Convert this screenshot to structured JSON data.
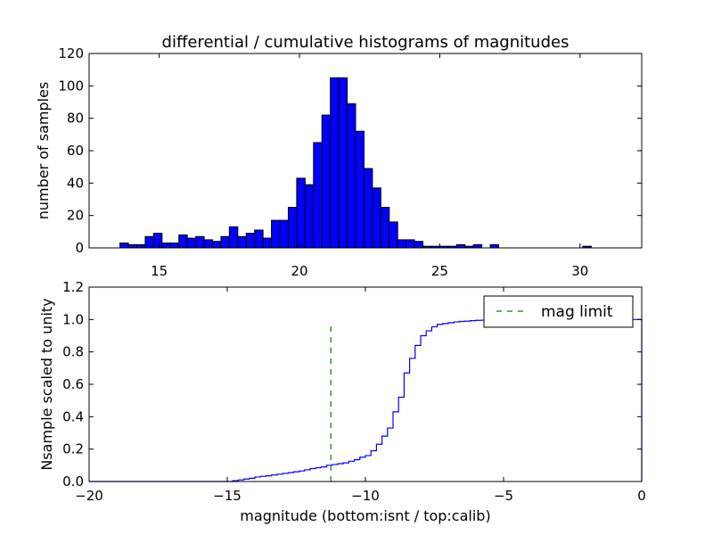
{
  "figure_title": "differential / cumulative histograms of magnitudes",
  "colors": {
    "hist_fill": "#0000ff",
    "hist_edge": "#000000",
    "cum_line": "#0000ff",
    "limit_line": "#008000"
  },
  "chart_data": [
    {
      "type": "bar",
      "title": "differential / cumulative histograms of magnitudes",
      "xlabel": "",
      "ylabel": "number of samples",
      "xlim": [
        12.5,
        32.2
      ],
      "ylim": [
        0,
        120
      ],
      "xticks": [
        15,
        20,
        25,
        30
      ],
      "yticks": [
        0,
        20,
        40,
        60,
        80,
        100,
        120
      ],
      "bin_width": 0.3,
      "bin_starts": [
        13.6,
        13.9,
        14.2,
        14.5,
        14.8,
        15.1,
        15.4,
        15.7,
        16.0,
        16.3,
        16.6,
        16.9,
        17.2,
        17.5,
        17.8,
        18.1,
        18.4,
        18.7,
        19.0,
        19.3,
        19.6,
        19.9,
        20.2,
        20.5,
        20.8,
        21.1,
        21.4,
        21.7,
        22.0,
        22.3,
        22.6,
        22.9,
        23.2,
        23.5,
        23.8,
        24.1,
        24.4,
        24.7,
        25.0,
        25.3,
        25.6,
        25.9,
        26.2,
        26.5,
        26.8,
        27.1,
        27.4,
        27.7,
        28.0,
        28.3,
        28.6,
        28.9,
        29.2,
        29.5,
        29.8,
        30.1,
        30.4,
        30.7,
        31.0
      ],
      "values": [
        3,
        2,
        2,
        7,
        9,
        3,
        3,
        8,
        6,
        7,
        5,
        4,
        7,
        13,
        7,
        9,
        11,
        6,
        17,
        17,
        25,
        43,
        39,
        65,
        82,
        105,
        105,
        89,
        72,
        49,
        37,
        25,
        16,
        5,
        5,
        4,
        1,
        1,
        1,
        1,
        2,
        1,
        2,
        0,
        2,
        0,
        0,
        0,
        0,
        0,
        0,
        0,
        0,
        0,
        0,
        1,
        0,
        0,
        0
      ],
      "grid": false
    },
    {
      "type": "line",
      "title": "",
      "xlabel": "magnitude (bottom:isnt / top:calib)",
      "ylabel": "Nsample scaled to unity",
      "xlim": [
        -20,
        0
      ],
      "ylim": [
        0,
        1.2
      ],
      "xticks": [
        -20,
        -15,
        -10,
        -5,
        0
      ],
      "yticks": [
        0.0,
        0.2,
        0.4,
        0.6,
        0.8,
        1.0,
        1.2
      ],
      "xtick_labels": [
        "−20",
        "−15",
        "−10",
        "−5",
        "0"
      ],
      "ytick_labels": [
        "0.0",
        "0.2",
        "0.4",
        "0.6",
        "0.8",
        "1.0",
        "1.2"
      ],
      "grid": false,
      "legend_position": "top-right",
      "series": [
        {
          "style": "step",
          "x": [
            -15.0,
            -14.8,
            -14.6,
            -14.4,
            -14.2,
            -14.0,
            -13.8,
            -13.6,
            -13.4,
            -13.2,
            -13.0,
            -12.8,
            -12.6,
            -12.4,
            -12.2,
            -12.0,
            -11.8,
            -11.6,
            -11.4,
            -11.2,
            -11.0,
            -10.8,
            -10.6,
            -10.4,
            -10.2,
            -10.0,
            -9.8,
            -9.6,
            -9.4,
            -9.2,
            -9.0,
            -8.8,
            -8.6,
            -8.4,
            -8.2,
            -8.0,
            -7.8,
            -7.6,
            -7.4,
            -7.2,
            -7.0,
            -6.8,
            -6.6,
            -6.4,
            -6.2,
            -6.0,
            -5.8,
            -5.6,
            -5.4,
            -5.2,
            -5.0,
            -4.8
          ],
          "y": [
            0.0,
            0.005,
            0.01,
            0.015,
            0.02,
            0.028,
            0.032,
            0.035,
            0.04,
            0.045,
            0.05,
            0.055,
            0.06,
            0.065,
            0.072,
            0.08,
            0.085,
            0.09,
            0.1,
            0.105,
            0.11,
            0.115,
            0.125,
            0.135,
            0.15,
            0.16,
            0.19,
            0.23,
            0.28,
            0.33,
            0.43,
            0.52,
            0.67,
            0.76,
            0.84,
            0.9,
            0.93,
            0.955,
            0.97,
            0.975,
            0.98,
            0.985,
            0.988,
            0.99,
            0.993,
            0.995,
            0.996,
            0.997,
            0.998,
            0.999,
            1.0,
            1.0
          ]
        },
        {
          "name": "mag limit",
          "style": "dashed",
          "x": [
            -11.25,
            -11.25
          ],
          "y": [
            0.0,
            0.97
          ]
        }
      ]
    }
  ]
}
